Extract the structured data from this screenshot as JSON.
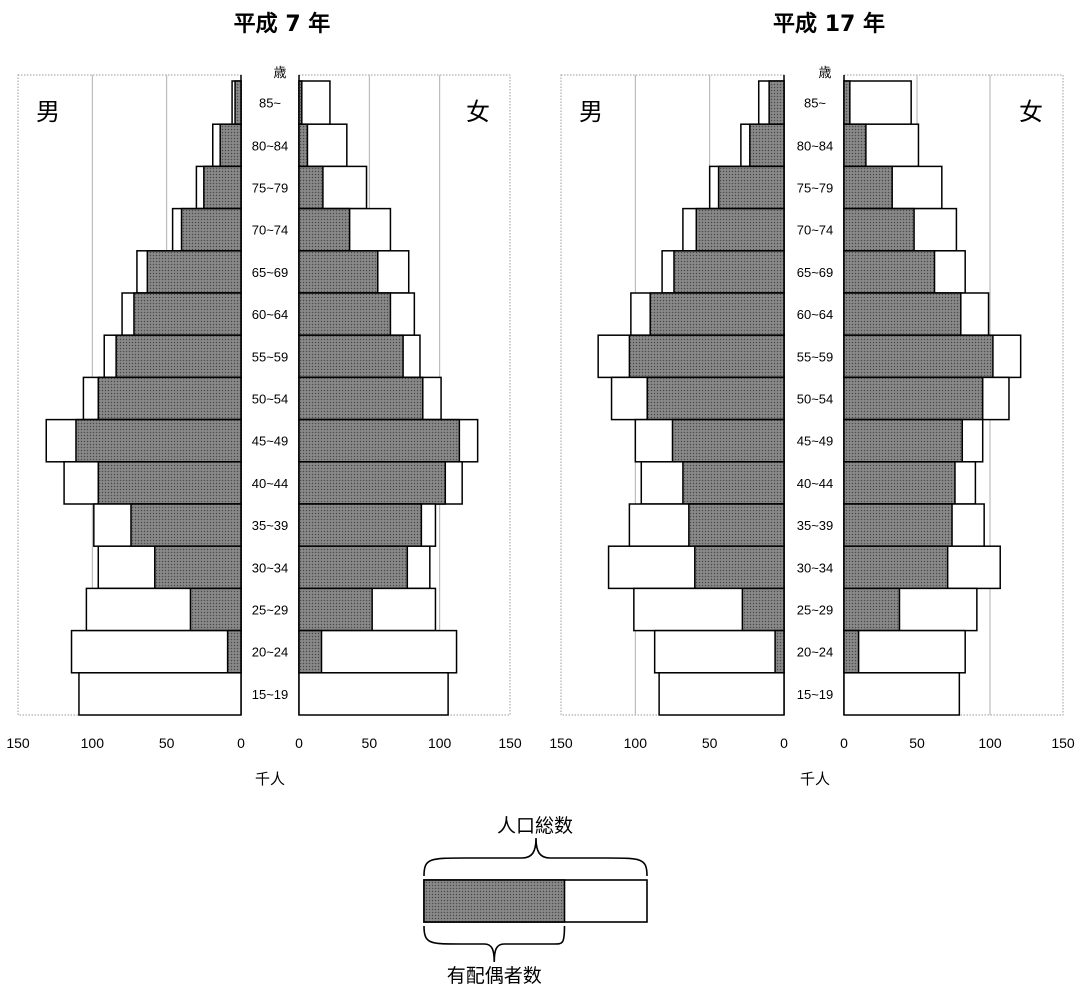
{
  "chart_data": [
    {
      "type": "bar",
      "title": "平成 7 年",
      "age_unit": "歳",
      "unit": "千人",
      "categories": [
        "85~",
        "80~84",
        "75~79",
        "70~74",
        "65~69",
        "60~64",
        "55~59",
        "50~54",
        "45~49",
        "40~44",
        "35~39",
        "30~34",
        "25~29",
        "20~24",
        "15~19"
      ],
      "male_label": "男",
      "female_label": "女",
      "male_ticks": [
        "150",
        "100",
        "50",
        "0"
      ],
      "female_ticks": [
        "0",
        "50",
        "100",
        "150"
      ],
      "xlim": [
        0,
        150
      ],
      "series": [
        {
          "name": "男 人口総数",
          "values": [
            6,
            19,
            30,
            46,
            70,
            80,
            92,
            106,
            131,
            119,
            99,
            96,
            104,
            114,
            109
          ]
        },
        {
          "name": "男 有配偶者数",
          "values": [
            4,
            14,
            25,
            40,
            63,
            72,
            84,
            96,
            111,
            96,
            74,
            58,
            34,
            9,
            0
          ]
        },
        {
          "name": "女 人口総数",
          "values": [
            22,
            34,
            48,
            65,
            78,
            82,
            86,
            101,
            127,
            116,
            97,
            93,
            97,
            112,
            106
          ]
        },
        {
          "name": "女 有配偶者数",
          "values": [
            2,
            6,
            17,
            36,
            56,
            65,
            74,
            88,
            114,
            104,
            87,
            77,
            52,
            16,
            0
          ]
        }
      ]
    },
    {
      "type": "bar",
      "title": "平成 17 年",
      "age_unit": "歳",
      "unit": "千人",
      "categories": [
        "85~",
        "80~84",
        "75~79",
        "70~74",
        "65~69",
        "60~64",
        "55~59",
        "50~54",
        "45~49",
        "40~44",
        "35~39",
        "30~34",
        "25~29",
        "20~24",
        "15~19"
      ],
      "male_label": "男",
      "female_label": "女",
      "male_ticks": [
        "150",
        "100",
        "50",
        "0"
      ],
      "female_ticks": [
        "0",
        "50",
        "100",
        "150"
      ],
      "xlim": [
        0,
        150
      ],
      "series": [
        {
          "name": "男 人口総数",
          "values": [
            17,
            29,
            50,
            68,
            82,
            103,
            125,
            116,
            100,
            96,
            104,
            118,
            101,
            87,
            84
          ]
        },
        {
          "name": "男 有配偶者数",
          "values": [
            10,
            23,
            44,
            59,
            74,
            90,
            104,
            92,
            75,
            68,
            64,
            60,
            28,
            6,
            0
          ]
        },
        {
          "name": "女 人口総数",
          "values": [
            46,
            51,
            67,
            77,
            83,
            99,
            121,
            113,
            95,
            90,
            96,
            107,
            91,
            83,
            79
          ]
        },
        {
          "name": "女 有配偶者数",
          "values": [
            4,
            15,
            33,
            48,
            62,
            80,
            102,
            95,
            81,
            76,
            74,
            71,
            38,
            10,
            0
          ]
        }
      ]
    }
  ],
  "legend": {
    "total_label": "人口総数",
    "married_label": "有配偶者数",
    "married_fraction": 0.63
  }
}
